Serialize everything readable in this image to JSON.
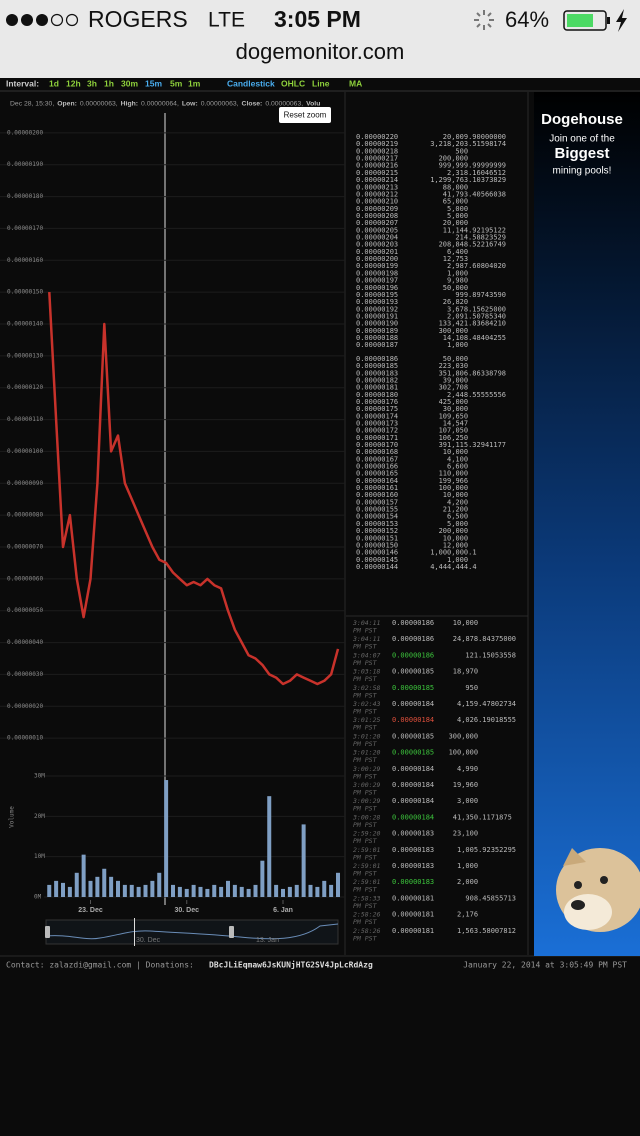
{
  "status_bar": {
    "carrier": "ROGERS",
    "network": "LTE",
    "time": "3:05 PM",
    "battery": "64%"
  },
  "url": "dogemonitor.com",
  "toolbar": {
    "label": "Interval:",
    "intervals": [
      "1d",
      "12h",
      "3h",
      "1h",
      "30m",
      "15m",
      "5m",
      "1m"
    ],
    "selected_interval": 5,
    "chart_types": [
      "Candlestick",
      "OHLC",
      "Line"
    ],
    "selected_chart_type": 0,
    "indicator": "MA"
  },
  "tooltip": {
    "date": "Dec 28, 15:30,",
    "fields": [
      {
        "label": "Open:",
        "value": "0.00000063,"
      },
      {
        "label": "High:",
        "value": "0.00000064,"
      },
      {
        "label": "Low:",
        "value": "0.00000063,"
      },
      {
        "label": "Close:",
        "value": "0.00000063,"
      },
      {
        "label": "Volu"
      }
    ]
  },
  "reset_zoom": "Reset zoom",
  "chart_data": [
    {
      "type": "line",
      "color": "#c8322b",
      "categories": [
        null,
        null,
        null,
        null,
        null,
        null,
        null,
        null,
        null,
        null,
        null,
        null,
        "23. Dec",
        null,
        null,
        null,
        null,
        null,
        null,
        null,
        null,
        null,
        null,
        null,
        null,
        null,
        "30. Dec",
        null,
        null,
        null,
        null,
        null,
        null,
        null,
        null,
        null,
        null,
        null,
        null,
        null,
        "6. Jan",
        null,
        null,
        null,
        null,
        null,
        null,
        null,
        null
      ],
      "values": [
        null,
        null,
        null,
        null,
        null,
        null,
        1.5e-06,
        1.1e-06,
        7e-07,
        8e-07,
        6e-07,
        4.8e-07,
        6e-07,
        9e-07,
        1.4e-06,
        1e-06,
        1.05e-06,
        9e-07,
        8.5e-07,
        8e-07,
        7.5e-07,
        7e-07,
        6.6e-07,
        6.5e-07,
        6.2e-07,
        6e-07,
        5.8e-07,
        5.9e-07,
        5.8e-07,
        6e-07,
        5.8e-07,
        5.7e-07,
        5e-07,
        4.4e-07,
        4e-07,
        3.6e-07,
        3.5e-07,
        3.3e-07,
        3e-07,
        2.9e-07,
        2.7e-07,
        2.8e-07,
        3e-07,
        2.9e-07,
        2.8e-07,
        2.7e-07,
        2.8e-07,
        3e-07,
        3.8e-07
      ],
      "ylim": [
        0,
        2.1e-06
      ],
      "yticks": [
        {
          "value": 1e-07,
          "label": "0.00000010"
        },
        {
          "value": 2e-07,
          "label": "0.00000020"
        },
        {
          "value": 3e-07,
          "label": "0.00000030"
        },
        {
          "value": 4e-07,
          "label": "0.00000040"
        },
        {
          "value": 5e-07,
          "label": "0.00000050"
        },
        {
          "value": 6e-07,
          "label": "0.00000060"
        },
        {
          "value": 7e-07,
          "label": "0.00000070"
        },
        {
          "value": 8e-07,
          "label": "0.00000080"
        },
        {
          "value": 9e-07,
          "label": "0.00000090"
        },
        {
          "value": 1e-06,
          "label": "0.00000100"
        },
        {
          "value": 1.1e-06,
          "label": "0.00000110"
        },
        {
          "value": 1.2e-06,
          "label": "0.00000120"
        },
        {
          "value": 1.3e-06,
          "label": "0.00000130"
        },
        {
          "value": 1.4e-06,
          "label": "0.00000140"
        },
        {
          "value": 1.5e-06,
          "label": "0.00000150"
        },
        {
          "value": 1.6e-06,
          "label": "0.00000160"
        },
        {
          "value": 1.7e-06,
          "label": "0.00000170"
        },
        {
          "value": 1.8e-06,
          "label": "0.00000180"
        },
        {
          "value": 1.9e-06,
          "label": "0.00000190"
        },
        {
          "value": 2e-06,
          "label": "0.00000200"
        }
      ],
      "grid": true
    },
    {
      "type": "bar",
      "color": "#7f9fc4",
      "y_label": "Volume",
      "values": [
        null,
        null,
        null,
        null,
        null,
        null,
        3000000,
        4000000,
        3500000,
        2500000,
        6000000,
        10500000,
        4000000,
        5000000,
        7000000,
        5000000,
        4000000,
        3000000,
        3000000,
        2500000,
        3000000,
        4000000,
        6000000,
        29000000,
        3000000,
        2500000,
        2000000,
        3000000,
        2500000,
        2000000,
        3000000,
        2500000,
        4000000,
        3000000,
        2500000,
        2000000,
        3000000,
        9000000,
        25000000,
        3000000,
        2000000,
        2500000,
        3000000,
        18000000,
        3000000,
        2500000,
        4000000,
        3000000,
        6000000
      ],
      "ylim": [
        0,
        30000000
      ],
      "yticks": [
        {
          "value": 0,
          "label": "0M"
        },
        {
          "value": 10000000,
          "label": "10M"
        },
        {
          "value": 20000000,
          "label": "20M"
        },
        {
          "value": 30000000,
          "label": "30M"
        }
      ]
    }
  ],
  "navigator": {
    "labels": [
      "30. Dec",
      "13. Jan"
    ]
  },
  "order_book": {
    "asks": [
      [
        "0.00000220",
        "20,009.90000000"
      ],
      [
        "0.00000219",
        "3,218,203.51598174"
      ],
      [
        "0.00000218",
        "500"
      ],
      [
        "0.00000217",
        "200,000"
      ],
      [
        "0.00000216",
        "999,999.99999999"
      ],
      [
        "0.00000215",
        "2,318.16046512"
      ],
      [
        "0.00000214",
        "1,299,763.10373829"
      ],
      [
        "0.00000213",
        "88,000"
      ],
      [
        "0.00000212",
        "41,793.40566038"
      ],
      [
        "0.00000210",
        "65,000"
      ],
      [
        "0.00000209",
        "5,000"
      ],
      [
        "0.00000208",
        "5,000"
      ],
      [
        "0.00000207",
        "20,000"
      ],
      [
        "0.00000205",
        "11,144.92195122"
      ],
      [
        "0.00000204",
        "214.58823529"
      ],
      [
        "0.00000203",
        "208,848.52216749"
      ],
      [
        "0.00000201",
        "6,400"
      ],
      [
        "0.00000200",
        "12,753"
      ],
      [
        "0.00000199",
        "2,987.60804020"
      ],
      [
        "0.00000198",
        "1,000"
      ],
      [
        "0.00000197",
        "9,980"
      ],
      [
        "0.00000196",
        "50,000"
      ],
      [
        "0.00000195",
        "999.89743590"
      ],
      [
        "0.00000193",
        "26,820"
      ],
      [
        "0.00000192",
        "3,678.15625000"
      ],
      [
        "0.00000191",
        "2,091.50785340"
      ],
      [
        "0.00000190",
        "133,421.83684210"
      ],
      [
        "0.00000189",
        "300,000"
      ],
      [
        "0.00000188",
        "14,108.48404255"
      ],
      [
        "0.00000187",
        "1,000"
      ]
    ],
    "bids": [
      [
        "0.00000186",
        "50,000"
      ],
      [
        "0.00000185",
        "223,030"
      ],
      [
        "0.00000183",
        "351,806.86338798"
      ],
      [
        "0.00000182",
        "39,000"
      ],
      [
        "0.00000181",
        "302,708"
      ],
      [
        "0.00000180",
        "2,448.55555556"
      ],
      [
        "0.00000176",
        "425,000"
      ],
      [
        "0.00000175",
        "30,000"
      ],
      [
        "0.00000174",
        "109,650"
      ],
      [
        "0.00000173",
        "14,547"
      ],
      [
        "0.00000172",
        "107,050"
      ],
      [
        "0.00000171",
        "106,250"
      ],
      [
        "0.00000170",
        "391,115.32941177"
      ],
      [
        "0.00000168",
        "10,000"
      ],
      [
        "0.00000167",
        "4,100"
      ],
      [
        "0.00000166",
        "6,600"
      ],
      [
        "0.00000165",
        "110,000"
      ],
      [
        "0.00000164",
        "199,966"
      ],
      [
        "0.00000161",
        "100,000"
      ],
      [
        "0.00000160",
        "10,000"
      ],
      [
        "0.00000157",
        "4,200"
      ],
      [
        "0.00000155",
        "21,200"
      ],
      [
        "0.00000154",
        "6,500"
      ],
      [
        "0.00000153",
        "5,000"
      ],
      [
        "0.00000152",
        "200,000"
      ],
      [
        "0.00000151",
        "10,000"
      ],
      [
        "0.00000150",
        "12,000"
      ],
      [
        "0.00000146",
        "1,000,000.1"
      ],
      [
        "0.00000145",
        "1,000"
      ],
      [
        "0.00000144",
        "4,444,444.4"
      ]
    ]
  },
  "trades": [
    {
      "time": [
        "3:04:11",
        "PM PST"
      ],
      "price": "0.00000186",
      "amount": "10,000"
    },
    {
      "time": [
        "3:04:11",
        "PM PST"
      ],
      "price": "0.00000186",
      "amount": "24,878.84375000"
    },
    {
      "time": [
        "3:04:07",
        "PM PST"
      ],
      "price": "0.00000186",
      "amount": "121.15053558",
      "color": "#3cc43c"
    },
    {
      "time": [
        "3:03:18",
        "PM PST"
      ],
      "price": "0.00000185",
      "amount": "18,970"
    },
    {
      "time": [
        "3:02:58",
        "PM PST"
      ],
      "price": "0.00000185",
      "amount": "950",
      "color": "#3cc43c"
    },
    {
      "time": [
        "3:02:43",
        "PM PST"
      ],
      "price": "0.00000184",
      "amount": "4,159.47802734"
    },
    {
      "time": [
        "3:01:25",
        "PM PST"
      ],
      "price": "0.00000184",
      "amount": "4,026.19018555",
      "color": "#e0503c"
    },
    {
      "time": [
        "3:01:20",
        "PM PST"
      ],
      "price": "0.00000185",
      "amount": "300,000"
    },
    {
      "time": [
        "3:01:20",
        "PM PST"
      ],
      "price": "0.00000185",
      "amount": "100,000",
      "color": "#3cc43c"
    },
    {
      "time": [
        "3:00:29",
        "PM PST"
      ],
      "price": "0.00000184",
      "amount": "4,990"
    },
    {
      "time": [
        "3:00:29",
        "PM PST"
      ],
      "price": "0.00000184",
      "amount": "19,960"
    },
    {
      "time": [
        "3:00:29",
        "PM PST"
      ],
      "price": "0.00000184",
      "amount": "3,000"
    },
    {
      "time": [
        "3:00:28",
        "PM PST"
      ],
      "price": "0.00000184",
      "amount": "41,350.1171875",
      "color": "#3cc43c"
    },
    {
      "time": [
        "2:59:20",
        "PM PST"
      ],
      "price": "0.00000183",
      "amount": "23,100"
    },
    {
      "time": [
        "2:59:01",
        "PM PST"
      ],
      "price": "0.00000183",
      "amount": "1,005.92352295"
    },
    {
      "time": [
        "2:59:01",
        "PM PST"
      ],
      "price": "0.00000183",
      "amount": "1,000"
    },
    {
      "time": [
        "2:59:01",
        "PM PST"
      ],
      "price": "0.00000183",
      "amount": "2,000",
      "color": "#3cc43c"
    },
    {
      "time": [
        "2:58:33",
        "PM PST"
      ],
      "price": "0.00000181",
      "amount": "908.45855713"
    },
    {
      "time": [
        "2:58:26",
        "PM PST"
      ],
      "price": "0.00000181",
      "amount": "2,176"
    },
    {
      "time": [
        "2:58:26",
        "PM PST"
      ],
      "price": "0.00000181",
      "amount": "1,563.58007812"
    }
  ],
  "ad": {
    "title": "Dogehouse",
    "line1": "Join one of the",
    "highlight": "Biggest",
    "line2": "mining pools!"
  },
  "footer": {
    "contact": "Contact: zalazdi@gmail.com | Donations:",
    "address": "DBcJLiEqmaw6JsKUNjHTG2SV4JpLcRdAzg",
    "timestamp": "January 22, 2014 at 3:05:49 PM PST"
  }
}
